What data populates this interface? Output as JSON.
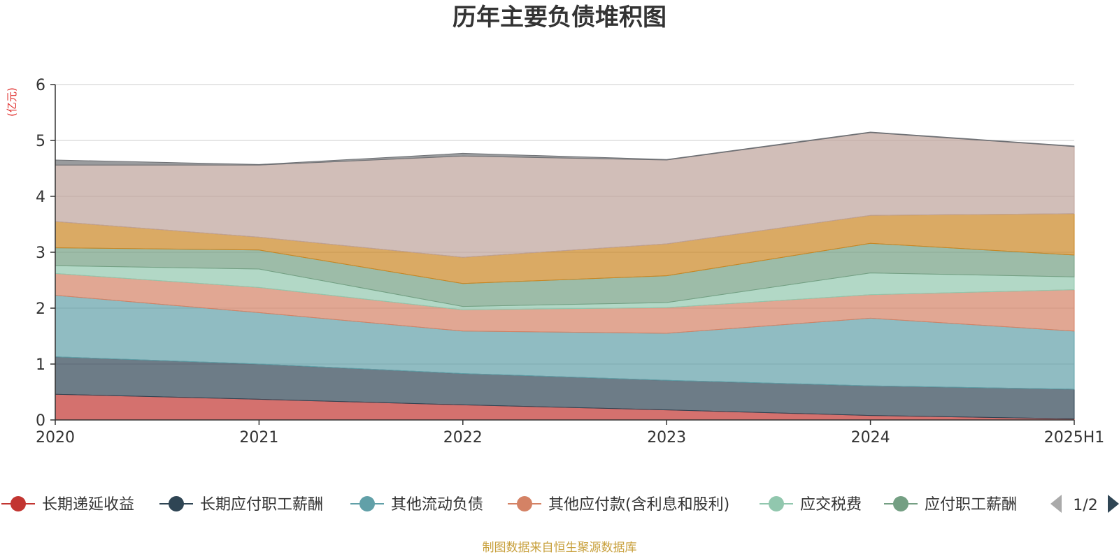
{
  "chart_data": {
    "type": "area",
    "stacked": true,
    "title": "历年主要负债堆积图",
    "y_unit": "(亿元)",
    "categories": [
      "2020",
      "2021",
      "2022",
      "2023",
      "2024",
      "2025H1"
    ],
    "ylim": [
      0,
      6
    ],
    "yticks": [
      "0",
      "1",
      "2",
      "3",
      "4",
      "5",
      "6"
    ],
    "grid": true,
    "series": [
      {
        "name": "长期递延收益",
        "color": "#c23531",
        "values": [
          0.46,
          0.37,
          0.27,
          0.18,
          0.08,
          0.02
        ]
      },
      {
        "name": "长期应付职工薪酬",
        "color": "#2f4554",
        "values": [
          0.67,
          0.63,
          0.56,
          0.53,
          0.53,
          0.53
        ]
      },
      {
        "name": "其他流动负债",
        "color": "#61a0a8",
        "values": [
          1.1,
          0.92,
          0.76,
          0.84,
          1.21,
          1.04
        ]
      },
      {
        "name": "其他应付款(含利息和股利)",
        "color": "#d48265",
        "values": [
          0.39,
          0.45,
          0.38,
          0.46,
          0.42,
          0.74
        ]
      },
      {
        "name": "应交税费",
        "color": "#91c7ae",
        "values": [
          0.14,
          0.33,
          0.06,
          0.09,
          0.39,
          0.23
        ]
      },
      {
        "name": "应付职工薪酬",
        "color": "#749f83",
        "values": [
          0.32,
          0.34,
          0.41,
          0.48,
          0.53,
          0.39
        ]
      },
      {
        "name": "",
        "color": "#ca8622",
        "values": [
          0.47,
          0.23,
          0.47,
          0.57,
          0.5,
          0.74
        ]
      },
      {
        "name": "",
        "color": "#bda29a",
        "values": [
          1.01,
          1.29,
          1.81,
          1.5,
          1.48,
          1.2
        ]
      },
      {
        "name": "",
        "color": "#6e7074",
        "values": [
          0.09,
          0.01,
          0.05,
          0.01,
          0.01,
          0.01
        ]
      }
    ],
    "legend": {
      "placement": "bottom",
      "page": "1/2"
    },
    "source": "制图数据来自恒生聚源数据库",
    "source_color": "#c8a03c",
    "unit_color": "#e0302e"
  }
}
